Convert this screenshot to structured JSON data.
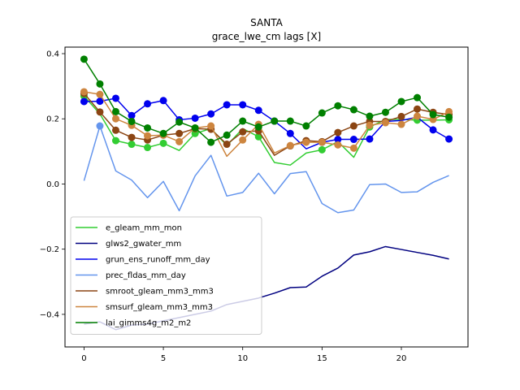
{
  "chart_data": {
    "type": "line",
    "title": "SANTA",
    "subtitle": "grace_lwe_cm lags [X]",
    "xlabel": "",
    "ylabel": "",
    "xlim": [
      -1.2,
      24.2
    ],
    "ylim": [
      -0.5,
      0.42
    ],
    "xticks": [
      0,
      5,
      10,
      15,
      20
    ],
    "yticks": [
      -0.4,
      -0.2,
      0.0,
      0.2,
      0.4
    ],
    "xtick_labels": [
      "0",
      "5",
      "10",
      "15",
      "20"
    ],
    "ytick_labels": [
      "−0.4",
      "−0.2",
      "0.0",
      "0.2",
      "0.4"
    ],
    "grid": false,
    "legend_position": "lower-left",
    "x": [
      0,
      1,
      2,
      3,
      4,
      5,
      6,
      7,
      8,
      9,
      10,
      11,
      12,
      13,
      14,
      15,
      16,
      17,
      18,
      19,
      20,
      21,
      22,
      23
    ],
    "series": [
      {
        "name": "e_gleam_mm_mon",
        "color": "#32cd32",
        "values": [
          0.27,
          0.215,
          0.133,
          0.122,
          0.112,
          0.125,
          0.103,
          0.155,
          0.17,
          0.118,
          0.17,
          0.145,
          0.066,
          0.058,
          0.095,
          0.105,
          0.13,
          0.082,
          0.175,
          0.198,
          0.198,
          0.196,
          0.196,
          0.197
        ],
        "markers": [
          true,
          false,
          true,
          true,
          true,
          true,
          false,
          true,
          false,
          false,
          false,
          true,
          false,
          false,
          false,
          true,
          false,
          false,
          true,
          false,
          false,
          true,
          false,
          true
        ]
      },
      {
        "name": "glws2_gwater_mm",
        "color": "#000080",
        "values": [
          -0.43,
          -0.423,
          -0.447,
          -0.433,
          -0.43,
          -0.42,
          -0.41,
          -0.4,
          -0.39,
          -0.37,
          -0.36,
          -0.35,
          -0.335,
          -0.318,
          -0.316,
          -0.283,
          -0.258,
          -0.218,
          -0.208,
          -0.192,
          -0.201,
          -0.21,
          -0.219,
          -0.23
        ],
        "markers": []
      },
      {
        "name": "grun_ens_runoff_mm_day",
        "color": "#0000ee",
        "values": [
          0.253,
          0.254,
          0.263,
          0.21,
          0.246,
          0.256,
          0.197,
          0.202,
          0.215,
          0.243,
          0.243,
          0.226,
          0.193,
          0.155,
          0.108,
          0.128,
          0.137,
          0.137,
          0.138,
          0.192,
          0.195,
          0.205,
          0.166,
          0.138
        ],
        "markers": [
          true,
          true,
          true,
          true,
          true,
          true,
          true,
          true,
          true,
          true,
          true,
          true,
          true,
          true,
          false,
          true,
          true,
          true,
          true,
          false,
          false,
          false,
          true,
          true
        ]
      },
      {
        "name": "prec_fldas_mm_day",
        "color": "#6495ed",
        "values": [
          0.01,
          0.178,
          0.04,
          0.012,
          -0.042,
          0.008,
          -0.082,
          0.025,
          0.088,
          -0.037,
          -0.026,
          0.033,
          -0.03,
          0.032,
          0.038,
          -0.06,
          -0.088,
          -0.08,
          -0.002,
          0.0,
          -0.026,
          -0.024,
          0.005,
          0.026
        ],
        "markers": [
          false,
          true,
          false,
          false,
          false,
          false,
          false,
          false,
          false,
          false,
          false,
          false,
          false,
          false,
          false,
          false,
          false,
          false,
          false,
          false,
          false,
          false,
          false,
          false
        ]
      },
      {
        "name": "smroot_gleam_mm3_mm3",
        "color": "#8b4513",
        "values": [
          0.278,
          0.221,
          0.165,
          0.143,
          0.135,
          0.15,
          0.155,
          0.17,
          0.168,
          0.122,
          0.16,
          0.163,
          0.088,
          0.117,
          0.133,
          0.13,
          0.158,
          0.178,
          0.192,
          0.192,
          0.207,
          0.23,
          0.22,
          0.213
        ],
        "markers": [
          true,
          true,
          true,
          true,
          true,
          true,
          true,
          true,
          true,
          true,
          true,
          true,
          false,
          true,
          true,
          true,
          true,
          true,
          true,
          true,
          true,
          true,
          true,
          true
        ]
      },
      {
        "name": "smsurf_gleam_mm3_mm3",
        "color": "#cd853f",
        "values": [
          0.283,
          0.275,
          0.2,
          0.18,
          0.148,
          0.15,
          0.13,
          0.172,
          0.178,
          0.085,
          0.135,
          0.183,
          0.095,
          0.118,
          0.128,
          0.128,
          0.12,
          0.11,
          0.18,
          0.188,
          0.183,
          0.208,
          0.198,
          0.222
        ],
        "markers": [
          true,
          true,
          true,
          true,
          true,
          true,
          true,
          true,
          true,
          false,
          true,
          true,
          false,
          true,
          true,
          true,
          true,
          true,
          true,
          true,
          true,
          true,
          true,
          true
        ]
      },
      {
        "name": "lai_gimms4g_m2_m2",
        "color": "#008000",
        "values": [
          0.383,
          0.307,
          0.222,
          0.192,
          0.172,
          0.155,
          0.19,
          0.172,
          0.128,
          0.15,
          0.193,
          0.175,
          0.193,
          0.193,
          0.178,
          0.218,
          0.24,
          0.228,
          0.208,
          0.22,
          0.253,
          0.265,
          0.213,
          0.205
        ],
        "markers": [
          true,
          true,
          true,
          true,
          true,
          true,
          true,
          true,
          true,
          true,
          true,
          true,
          true,
          true,
          true,
          true,
          true,
          true,
          true,
          true,
          true,
          true,
          true,
          true
        ]
      }
    ]
  }
}
